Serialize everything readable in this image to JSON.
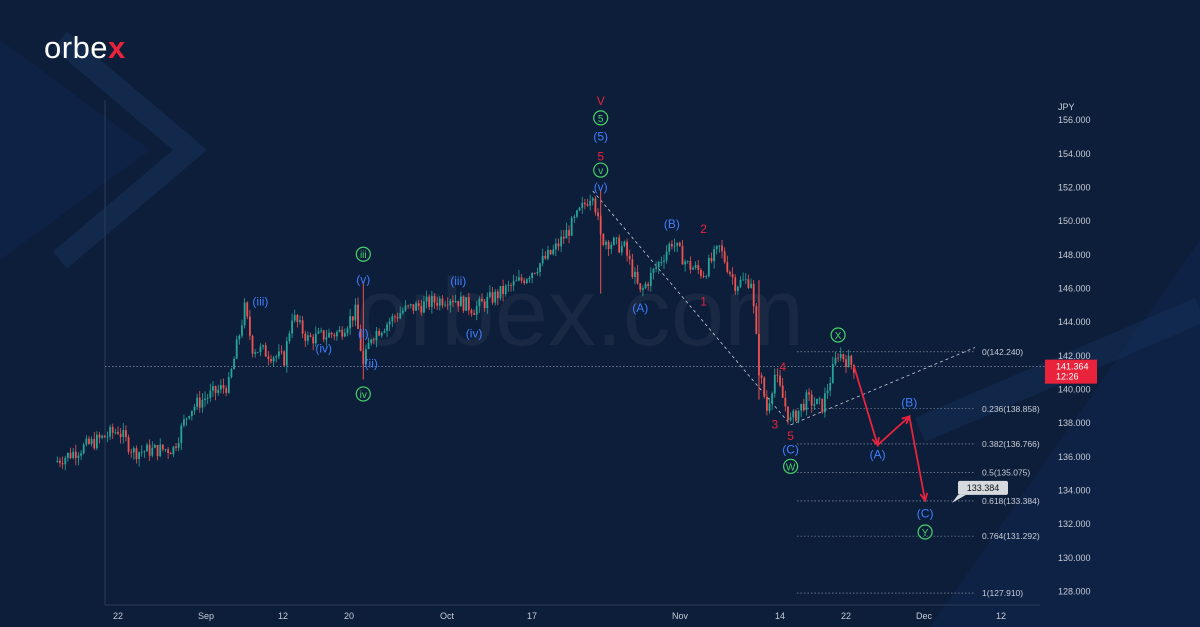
{
  "brand": {
    "logo_pre": "orbe",
    "logo_x": "x",
    "watermark": "orbex.com"
  },
  "chart_data": {
    "type": "candlestick",
    "currency_label": "JPY",
    "price_badge": {
      "price": "141.364",
      "timer": "12:26"
    },
    "target_badge": "133.384",
    "y_axis": {
      "min": 127.2,
      "max": 157.2,
      "ticks": [
        "156.000",
        "154.000",
        "152.000",
        "150.000",
        "148.000",
        "146.000",
        "144.000",
        "142.000",
        "140.000",
        "138.000",
        "136.000",
        "134.000",
        "132.000",
        "130.000",
        "128.000"
      ]
    },
    "x_axis": {
      "ticks": [
        "22",
        "Sep",
        "12",
        "20",
        "Oct",
        "17",
        "Nov",
        "14",
        "22",
        "Dec",
        "12"
      ]
    },
    "series": [
      {
        "t": "Aug 14",
        "v": 135.7
      },
      {
        "t": "Aug 22",
        "v": 137.6
      },
      {
        "t": "Aug 24",
        "v": 136.3
      },
      {
        "t": "Aug 29",
        "v": 136.5
      },
      {
        "t": "Aug 31",
        "v": 138.8
      },
      {
        "t": "Sep 2",
        "v": 139.5
      },
      {
        "t": "Sep 5",
        "v": 140.3
      },
      {
        "t": "Sep 7",
        "v": 144.8
      },
      {
        "t": "Sep 8",
        "v": 142.5
      },
      {
        "t": "Sep 12",
        "v": 141.8
      },
      {
        "t": "Sep 13",
        "v": 144.4
      },
      {
        "t": "Sep 15",
        "v": 143.0
      },
      {
        "t": "Sep 19",
        "v": 143.4
      },
      {
        "t": "Sep 21",
        "v": 144.6
      },
      {
        "t": "Sep 22",
        "v": 141.4
      },
      {
        "t": "Sep 23",
        "v": 143.2
      },
      {
        "t": "Sep 27",
        "v": 144.7
      },
      {
        "t": "Oct 3",
        "v": 145.5
      },
      {
        "t": "Oct 6",
        "v": 144.8
      },
      {
        "t": "Oct 12",
        "v": 146.5
      },
      {
        "t": "Oct 16",
        "v": 148.2
      },
      {
        "t": "Oct 18",
        "v": 149.5
      },
      {
        "t": "Oct 21",
        "v": 151.8
      },
      {
        "t": "Oct 22",
        "v": 149.0
      },
      {
        "t": "Oct 25",
        "v": 148.4
      },
      {
        "t": "Oct 27",
        "v": 145.7
      },
      {
        "t": "Oct 31",
        "v": 148.8
      },
      {
        "t": "Nov 2",
        "v": 147.4
      },
      {
        "t": "Nov 4",
        "v": 146.9
      },
      {
        "t": "Nov 6",
        "v": 148.4
      },
      {
        "t": "Nov 8",
        "v": 146.3
      },
      {
        "t": "Nov 10",
        "v": 146.5
      },
      {
        "t": "Nov 11",
        "v": 141.2
      },
      {
        "t": "Nov 12",
        "v": 138.8
      },
      {
        "t": "Nov 13",
        "v": 140.9
      },
      {
        "t": "Nov 15",
        "v": 138.1
      },
      {
        "t": "Nov 17",
        "v": 139.4
      },
      {
        "t": "Nov 19",
        "v": 139.0
      },
      {
        "t": "Nov 21",
        "v": 142.2
      },
      {
        "t": "Nov 23",
        "v": 141.36
      }
    ],
    "projection": [
      {
        "t": "Nov 23",
        "v": 141.4
      },
      {
        "t": "Nov 26",
        "v": 136.7
      },
      {
        "t": "Nov 30",
        "v": 138.4
      },
      {
        "t": "Dec 2",
        "v": 133.4
      }
    ],
    "fib_levels": [
      {
        "label": "0(142.240)",
        "value": 142.24
      },
      {
        "label": "0.236(138.858)",
        "value": 138.858
      },
      {
        "label": "0.382(136.766)",
        "value": 136.766
      },
      {
        "label": "0.5(135.075)",
        "value": 135.075
      },
      {
        "label": "0.618(133.384)",
        "value": 133.384
      },
      {
        "label": "0.764(131.292)",
        "value": 131.292
      },
      {
        "label": "1(127.910)",
        "value": 127.91
      }
    ],
    "wave_labels": [
      {
        "text": "(iii)",
        "color": "#3f7fff",
        "t": "Sep 9",
        "v": 145.0,
        "circled": false
      },
      {
        "text": "(iv)",
        "color": "#3f7fff",
        "t": "Sep 17",
        "v": 142.2,
        "circled": false
      },
      {
        "text": "iii",
        "color": "#46d36a",
        "t": "Sep 22",
        "v": 147.8,
        "circled": true
      },
      {
        "text": "(v)",
        "color": "#3f7fff",
        "t": "Sep 22",
        "v": 146.3,
        "circled": false
      },
      {
        "text": "(i)",
        "color": "#3f7fff",
        "t": "Sep 22",
        "v": 143.1,
        "circled": false
      },
      {
        "text": "(ii)",
        "color": "#3f7fff",
        "t": "Sep 23",
        "v": 141.3,
        "circled": false
      },
      {
        "text": "iv",
        "color": "#46d36a",
        "t": "Sep 22",
        "v": 139.5,
        "circled": true
      },
      {
        "text": "(iii)",
        "color": "#3f7fff",
        "t": "Oct 4",
        "v": 146.2,
        "circled": false
      },
      {
        "text": "(iv)",
        "color": "#3f7fff",
        "t": "Oct 6",
        "v": 143.1,
        "circled": false
      },
      {
        "text": "V",
        "color": "#e8233b",
        "t": "Oct 22",
        "v": 156.9,
        "circled": false
      },
      {
        "text": "5",
        "color": "#46d36a",
        "t": "Oct 22",
        "v": 155.9,
        "circled": true
      },
      {
        "text": "(5)",
        "color": "#3f7fff",
        "t": "Oct 22",
        "v": 154.8,
        "circled": false
      },
      {
        "text": "5",
        "color": "#e8233b",
        "t": "Oct 22",
        "v": 153.6,
        "circled": false
      },
      {
        "text": "v",
        "color": "#46d36a",
        "t": "Oct 22",
        "v": 152.8,
        "circled": true
      },
      {
        "text": "(v)",
        "color": "#3f7fff",
        "t": "Oct 22",
        "v": 151.8,
        "circled": false
      },
      {
        "text": "(A)",
        "color": "#3f7fff",
        "t": "Oct 27",
        "v": 144.6,
        "circled": false
      },
      {
        "text": "(B)",
        "color": "#3f7fff",
        "t": "Oct 31",
        "v": 149.6,
        "circled": false
      },
      {
        "text": "2",
        "color": "#e8233b",
        "t": "Nov 4",
        "v": 149.3,
        "circled": false
      },
      {
        "text": "1",
        "color": "#e8233b",
        "t": "Nov 4",
        "v": 145.0,
        "circled": false
      },
      {
        "text": "4",
        "color": "#e8233b",
        "t": "Nov 14",
        "v": 141.1,
        "circled": false
      },
      {
        "text": "3",
        "color": "#e8233b",
        "t": "Nov 13",
        "v": 137.7,
        "circled": false
      },
      {
        "text": "5",
        "color": "#e8233b",
        "t": "Nov 15",
        "v": 137.0,
        "circled": false
      },
      {
        "text": "(C)",
        "color": "#3f7fff",
        "t": "Nov 15",
        "v": 136.2,
        "circled": false
      },
      {
        "text": "W",
        "color": "#46d36a",
        "t": "Nov 15",
        "v": 135.2,
        "circled": true
      },
      {
        "text": "X",
        "color": "#46d36a",
        "t": "Nov 21",
        "v": 143.0,
        "circled": true
      },
      {
        "text": "(A)",
        "color": "#3f7fff",
        "t": "Nov 26",
        "v": 135.9,
        "circled": false
      },
      {
        "text": "(B)",
        "color": "#3f7fff",
        "t": "Nov 30",
        "v": 139.0,
        "circled": false
      },
      {
        "text": "(C)",
        "color": "#3f7fff",
        "t": "Dec 2",
        "v": 132.4,
        "circled": false
      },
      {
        "text": "Y",
        "color": "#46d36a",
        "t": "Dec 2",
        "v": 131.3,
        "circled": true
      }
    ],
    "colors": {
      "background": "#0d1e3a",
      "up": "#26a69a",
      "down": "#ef5350",
      "projection": "#e8233b",
      "fib": "#c8ccd6",
      "axis_text": "#c8ccd6",
      "price_badge": "#e8233b"
    }
  }
}
